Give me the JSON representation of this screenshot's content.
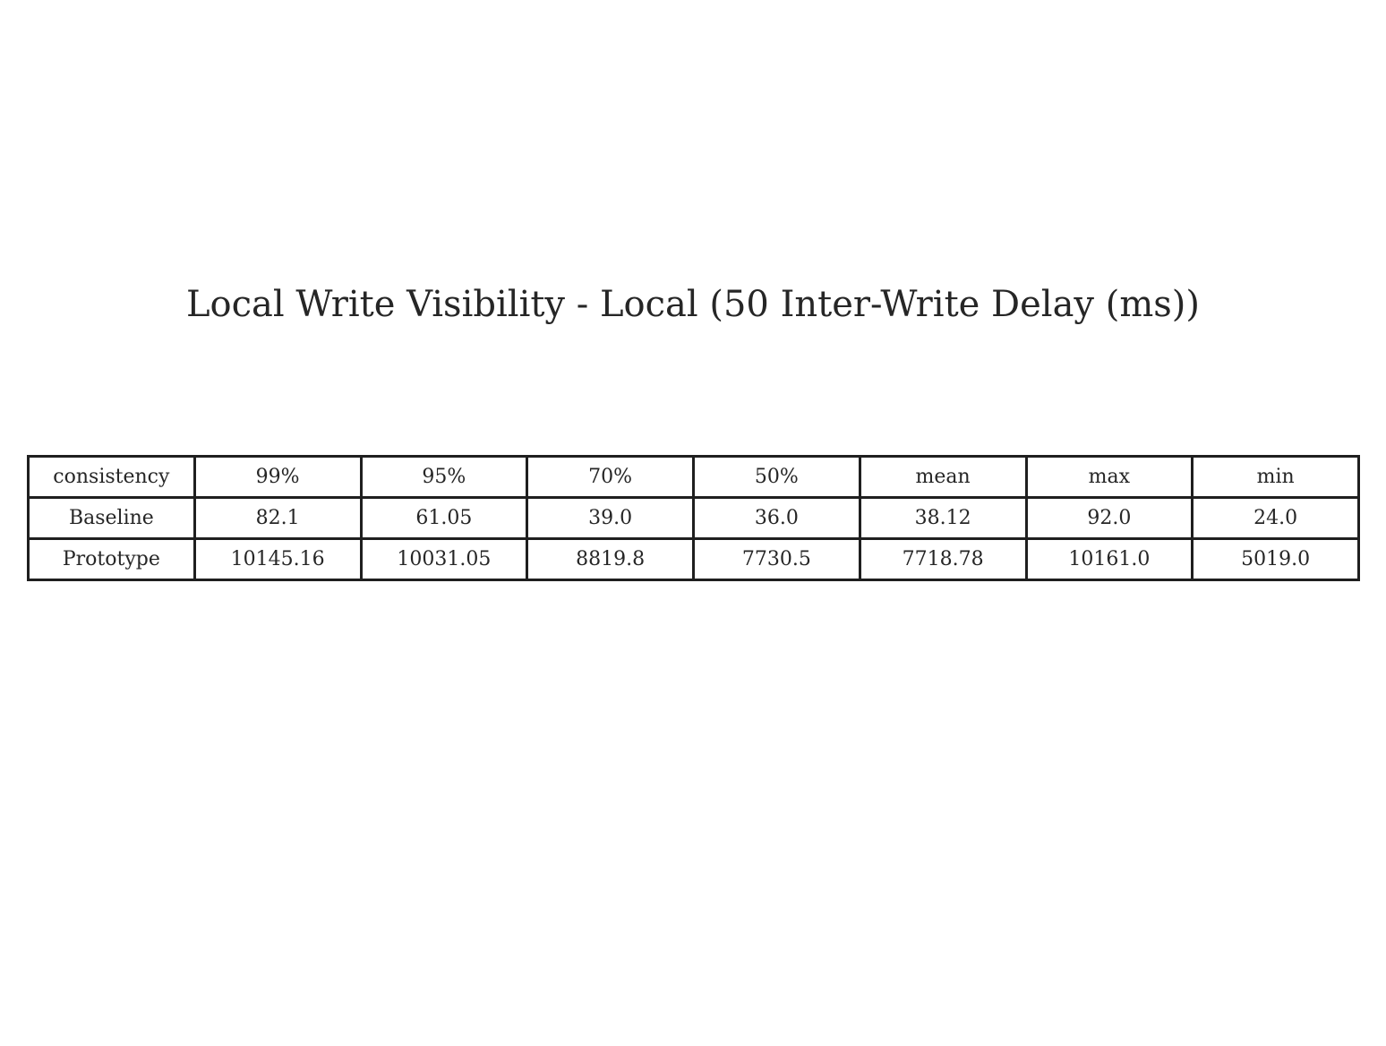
{
  "chart_data": {
    "type": "table",
    "title": "Local Write Visibility - Local (50 Inter-Write Delay (ms))",
    "columns": [
      "consistency",
      "99%",
      "95%",
      "70%",
      "50%",
      "mean",
      "max",
      "min"
    ],
    "rows": [
      [
        "Baseline",
        "82.1",
        "61.05",
        "39.0",
        "36.0",
        "38.12",
        "92.0",
        "24.0"
      ],
      [
        "Prototype",
        "10145.16",
        "10031.05",
        "8819.8",
        "7730.5",
        "7718.78",
        "10161.0",
        "5019.0"
      ]
    ]
  }
}
